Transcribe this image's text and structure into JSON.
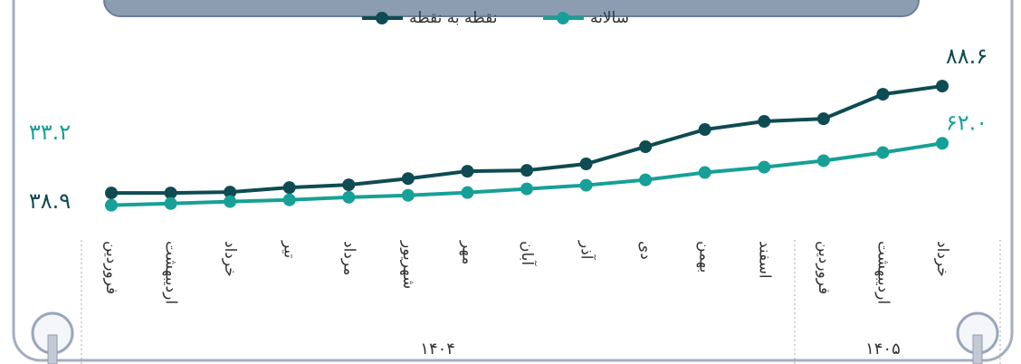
{
  "chart_data": {
    "type": "line",
    "categories": [
      "فروردین",
      "اردیبهشت",
      "خرداد",
      "تیر",
      "مرداد",
      "شهریور",
      "مهر",
      "آبان",
      "آذر",
      "دی",
      "بهمن",
      "اسفند",
      "فروردین",
      "اردیبهشت",
      "خرداد"
    ],
    "category_groups": [
      {
        "name": "۱۴۰۴",
        "span": 12
      },
      {
        "name": "۱۴۰۵",
        "span": 3
      }
    ],
    "ylim": [
      20,
      100
    ],
    "series": [
      {
        "name": "نقطه به نقطه",
        "color": "#0e4b52",
        "values": [
          38.9,
          38.9,
          39.3,
          41.4,
          42.7,
          45.6,
          49.0,
          49.4,
          52.4,
          60.4,
          68.4,
          72.2,
          73.4,
          84.8,
          88.6
        ],
        "value_labels": [
          "۳۸.۹",
          null,
          null,
          null,
          null,
          null,
          null,
          null,
          null,
          null,
          null,
          null,
          null,
          null,
          "۸۸.۶"
        ]
      },
      {
        "name": "سالانه",
        "color": "#17a097",
        "values": [
          33.2,
          34.0,
          34.9,
          35.7,
          36.9,
          37.8,
          39.1,
          40.8,
          42.5,
          45.0,
          48.4,
          50.9,
          53.9,
          57.7,
          62.0
        ],
        "value_labels": [
          "۳۳.۲",
          null,
          null,
          null,
          null,
          null,
          null,
          null,
          null,
          null,
          null,
          null,
          null,
          null,
          "۶۲.۰"
        ]
      }
    ]
  }
}
